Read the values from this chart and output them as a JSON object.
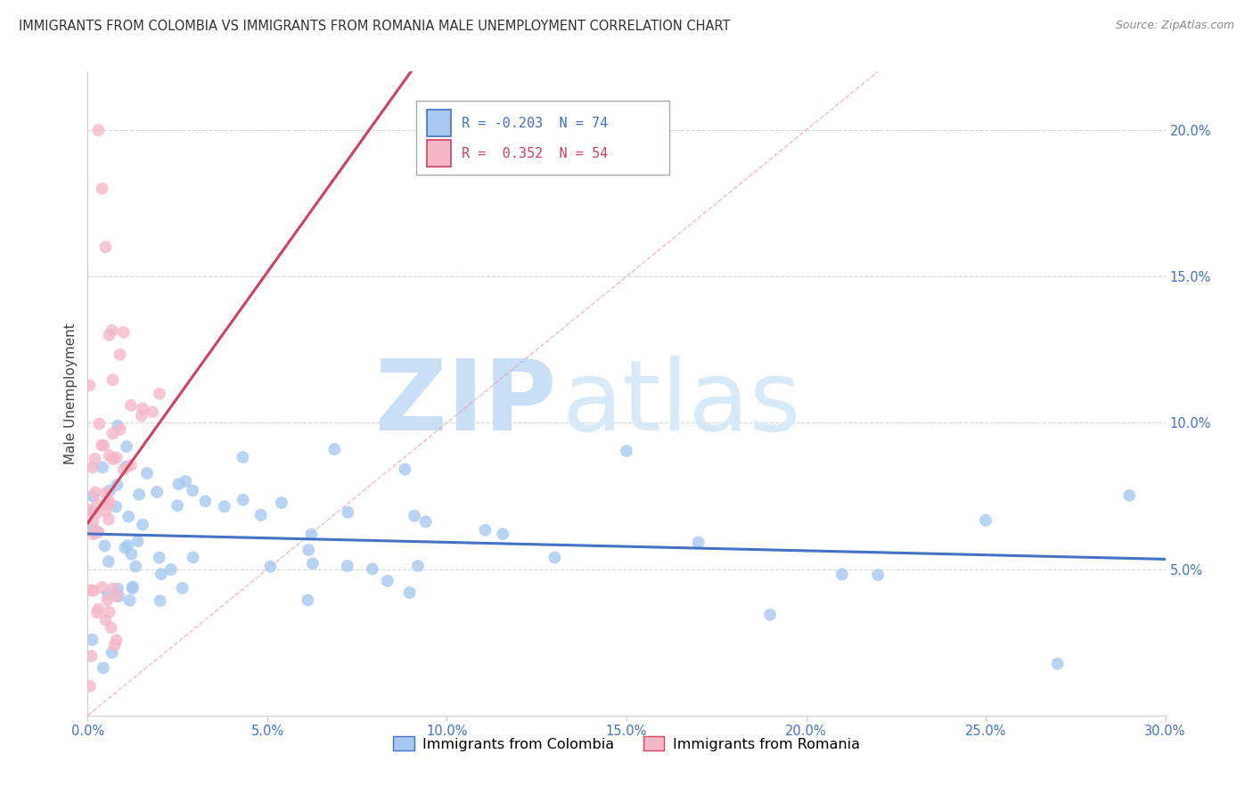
{
  "title": "IMMIGRANTS FROM COLOMBIA VS IMMIGRANTS FROM ROMANIA MALE UNEMPLOYMENT CORRELATION CHART",
  "source": "Source: ZipAtlas.com",
  "ylabel": "Male Unemployment",
  "xlim": [
    0.0,
    0.3
  ],
  "ylim": [
    0.0,
    0.22
  ],
  "xticks": [
    0.0,
    0.05,
    0.1,
    0.15,
    0.2,
    0.25,
    0.3
  ],
  "xtick_labels": [
    "0.0%",
    "5.0%",
    "10.0%",
    "15.0%",
    "20.0%",
    "25.0%",
    "30.0%"
  ],
  "yticks_right": [
    0.0,
    0.05,
    0.1,
    0.15,
    0.2
  ],
  "ytick_labels_right": [
    "",
    "5.0%",
    "10.0%",
    "15.0%",
    "20.0%"
  ],
  "colombia_R": -0.203,
  "colombia_N": 74,
  "romania_R": 0.352,
  "romania_N": 54,
  "colombia_color": "#a8c8f0",
  "romania_color": "#f4b8c8",
  "colombia_line_color": "#4472c4",
  "romania_line_color": "#d04060",
  "diag_line_color": "#e8a0b0",
  "watermark_zip": "ZIP",
  "watermark_atlas": "atlas",
  "watermark_color": "#c8dff5",
  "legend_colombia_label": "Immigrants from Colombia",
  "legend_romania_label": "Immigrants from Romania"
}
